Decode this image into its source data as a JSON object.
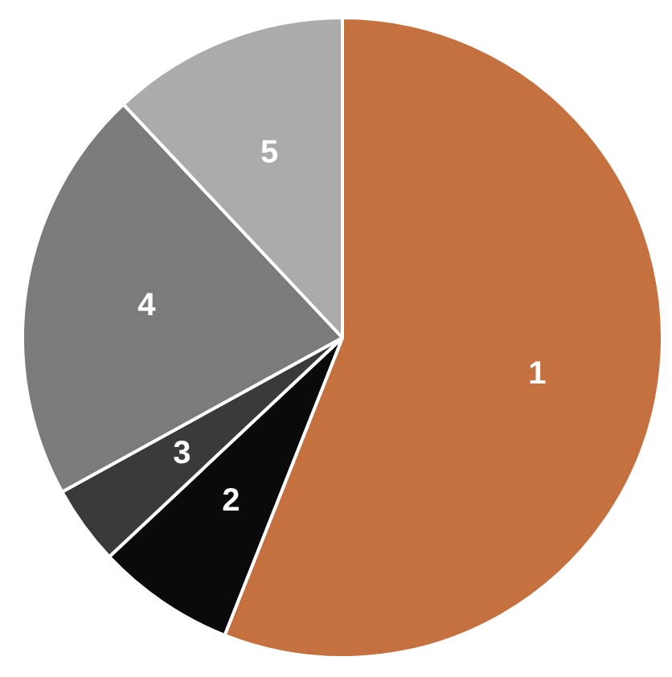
{
  "chart_data": {
    "type": "pie",
    "categories": [
      "1",
      "2",
      "3",
      "4",
      "5"
    ],
    "values": [
      56,
      7,
      4,
      21,
      12
    ],
    "colors": [
      "#c4703f",
      "#0a0a0a",
      "#3a3a3a",
      "#7b7b7b",
      "#ababab"
    ],
    "data_labels": false,
    "legend": false
  }
}
